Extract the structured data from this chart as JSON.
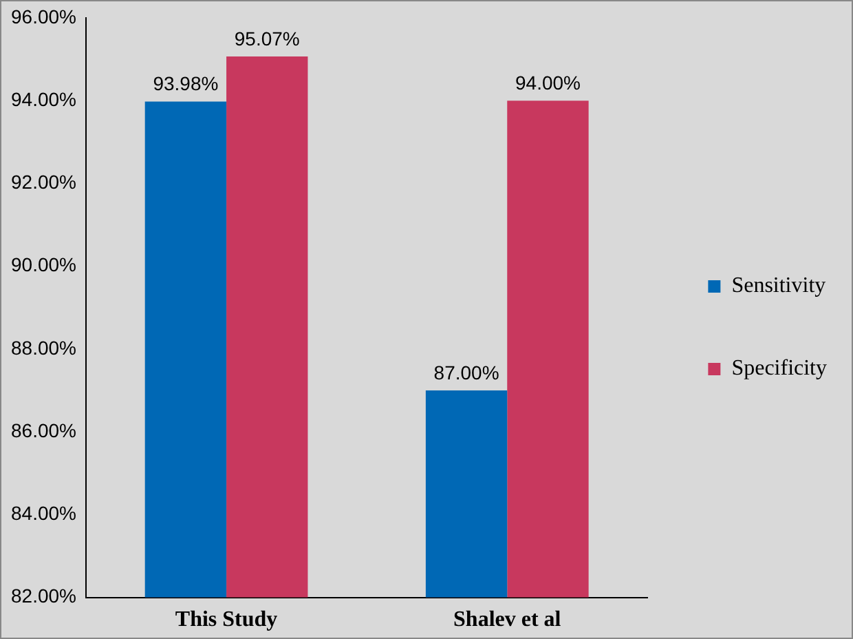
{
  "chart_data": {
    "type": "bar",
    "categories": [
      "This Study",
      "Shalev et al"
    ],
    "series": [
      {
        "name": "Sensitivity",
        "color": "#0068b5",
        "values": [
          93.98,
          87.0
        ],
        "value_labels": [
          "93.98%",
          "87.00%"
        ]
      },
      {
        "name": "Specificity",
        "color": "#c8385e",
        "values": [
          95.07,
          94.0
        ],
        "value_labels": [
          "95.07%",
          "94.00%"
        ]
      }
    ],
    "ylim": [
      82,
      96
    ],
    "yticks": [
      {
        "value": 82,
        "label": "82.00%"
      },
      {
        "value": 84,
        "label": "84.00%"
      },
      {
        "value": 86,
        "label": "86.00%"
      },
      {
        "value": 88,
        "label": "88.00%"
      },
      {
        "value": 90,
        "label": "90.00%"
      },
      {
        "value": 92,
        "label": "92.00%"
      },
      {
        "value": 94,
        "label": "94.00%"
      },
      {
        "value": 96,
        "label": "96.00%"
      }
    ],
    "grid": false,
    "legend": "right"
  }
}
